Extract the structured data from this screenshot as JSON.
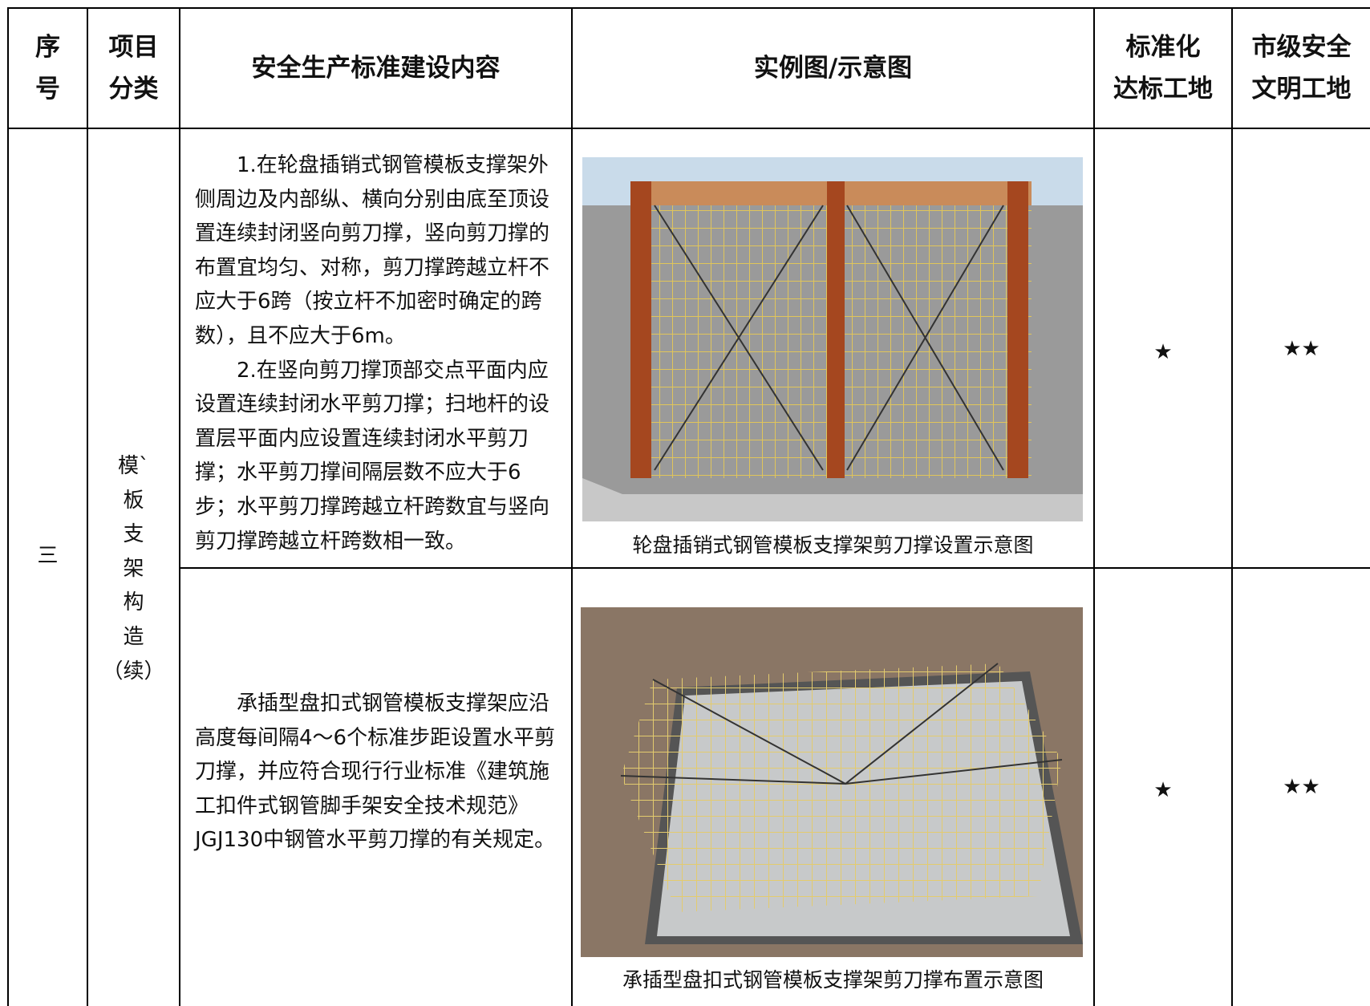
{
  "table": {
    "header": [
      [
        "序",
        "号"
      ],
      [
        "项目",
        "分类"
      ],
      [
        "安全生产标准建设内容"
      ],
      [
        "实例图/示意图"
      ],
      [
        "标准化",
        "达标工地"
      ],
      [
        "市级安全",
        "文明工地"
      ]
    ],
    "seq": "三",
    "category": [
      "模`",
      "板",
      "支",
      "架",
      "构",
      "造",
      "（续）"
    ],
    "rows": [
      {
        "content": [
          "1.在轮盘插销式钢管模板支撑架外侧周边及内部纵、横向分别由底至顶设置连续封闭竖向剪刀撑，竖向剪刀撑的布置宜均匀、对称，剪刀撑跨越立杆不应大于6跨（按立杆不加密时确定的跨数），且不应大于6m。",
          "2.在竖向剪刀撑顶部交点平面内应设置连续封闭水平剪刀撑；扫地杆的设置层平面内应设置连续封闭水平剪刀撑；水平剪刀撑间隔层数不应大于6步；水平剪刀撑跨越立杆跨数宜与竖向剪刀撑跨越立杆跨数相一致。"
        ],
        "caption": "轮盘插销式钢管模板支撑架剪刀撑设置示意图",
        "standard": "★",
        "city": "★★"
      },
      {
        "content": [
          "承插型盘扣式钢管模板支撑架应沿高度每间隔4～6个标准步距设置水平剪刀撑，并应符合现行行业标准《建筑施工扣件式钢管脚手架安全技术规范》JGJ130中钢管水平剪刀撑的有关规定。"
        ],
        "caption": "承插型盘扣式钢管模板支撑架剪刀撑布置示意图",
        "standard": "★",
        "city": "★★"
      }
    ]
  }
}
